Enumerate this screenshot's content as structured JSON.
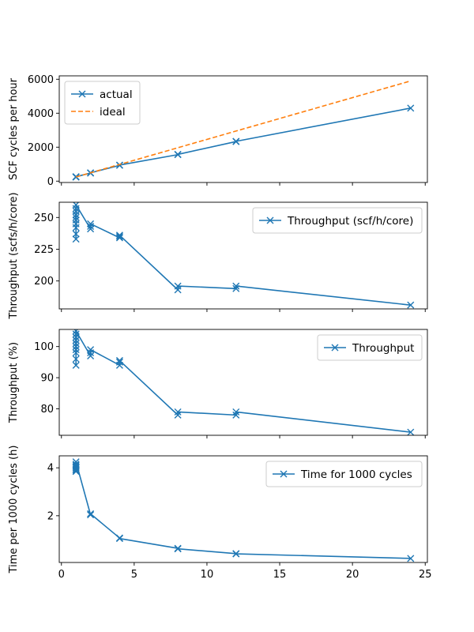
{
  "colors": {
    "actual": "#1f77b4",
    "ideal": "#ff7f0e"
  },
  "chart_data": [
    {
      "type": "line",
      "ylabel": "SCF cycles per hour",
      "xlim": [
        -0.15,
        25.15
      ],
      "ylim": [
        -80,
        6200
      ],
      "yticks": [
        0,
        2000,
        4000,
        6000
      ],
      "show_xtick_labels": false,
      "legend": "top-left",
      "series": [
        {
          "name": "actual",
          "style": "solid-x",
          "color": "#1f77b4",
          "x": [
            1,
            1,
            1,
            1,
            2,
            2,
            4,
            4,
            8,
            8,
            12,
            12,
            24
          ],
          "y": [
            235,
            250,
            255,
            260,
            475,
            490,
            930,
            945,
            1560,
            1575,
            2330,
            2345,
            4300
          ]
        },
        {
          "name": "ideal",
          "style": "dashed",
          "color": "#ff7f0e",
          "x": [
            1,
            24
          ],
          "y": [
            245,
            5900
          ]
        }
      ]
    },
    {
      "type": "line",
      "ylabel": "Throughput (scfs/h/core)",
      "xlim": [
        -0.15,
        25.15
      ],
      "ylim": [
        178,
        262
      ],
      "yticks": [
        200,
        225,
        250
      ],
      "show_xtick_labels": false,
      "legend": "top-right",
      "series": [
        {
          "name": "Throughput (scf/h/core)",
          "style": "solid-x",
          "color": "#1f77b4",
          "x": [
            1,
            1,
            1,
            1,
            1,
            1,
            1,
            1,
            1,
            1,
            2,
            2,
            2,
            4,
            4,
            4,
            8,
            8,
            12,
            12,
            24
          ],
          "y": [
            233,
            237,
            242,
            245,
            248,
            250,
            252,
            255,
            257,
            260,
            241,
            243,
            245,
            234,
            235,
            236,
            193,
            196,
            194,
            196,
            181
          ]
        }
      ]
    },
    {
      "type": "line",
      "ylabel": "Throughput (%)",
      "xlim": [
        -0.15,
        25.15
      ],
      "ylim": [
        71.5,
        105.5
      ],
      "yticks": [
        80,
        90,
        100
      ],
      "show_xtick_labels": false,
      "legend": "top-right",
      "series": [
        {
          "name": "Throughput",
          "style": "solid-x",
          "color": "#1f77b4",
          "x": [
            1,
            1,
            1,
            1,
            1,
            1,
            1,
            1,
            1,
            1,
            2,
            2,
            2,
            4,
            4,
            4,
            8,
            8,
            12,
            12,
            24
          ],
          "y": [
            94,
            96,
            98,
            99,
            100,
            101,
            102,
            103,
            104,
            105,
            97,
            98,
            99,
            94,
            95,
            95.5,
            78,
            79,
            78,
            79,
            72.5
          ]
        }
      ]
    },
    {
      "type": "line",
      "ylabel": "Time per 1000 cycles (h)",
      "xlabel": "",
      "xlim": [
        -0.15,
        25.15
      ],
      "ylim": [
        0.05,
        4.5
      ],
      "yticks": [
        2,
        4
      ],
      "xticks": [
        0,
        5,
        10,
        15,
        20,
        25
      ],
      "show_xtick_labels": true,
      "legend": "top-right",
      "series": [
        {
          "name": "Time for 1000 cycles",
          "style": "solid-x",
          "color": "#1f77b4",
          "x": [
            1,
            1,
            1,
            1,
            1,
            1,
            1,
            1,
            2,
            2,
            4,
            4,
            8,
            8,
            12,
            12,
            24
          ],
          "y": [
            3.85,
            3.9,
            3.95,
            4.0,
            4.05,
            4.1,
            4.15,
            4.25,
            2.04,
            2.08,
            1.07,
            1.05,
            0.64,
            0.62,
            0.42,
            0.41,
            0.22
          ]
        }
      ]
    }
  ]
}
